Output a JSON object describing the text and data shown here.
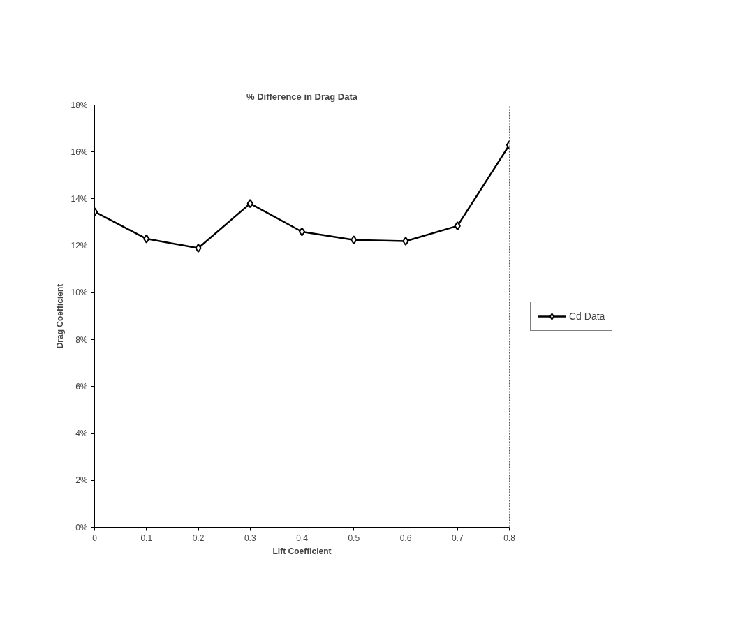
{
  "chart_data": {
    "type": "line",
    "title": "% Difference in Drag Data",
    "xlabel": "Lift Coefficient",
    "ylabel": "Drag Coefficient",
    "x": [
      0,
      0.1,
      0.2,
      0.3,
      0.4,
      0.5,
      0.6,
      0.7,
      0.8
    ],
    "series": [
      {
        "name": "Cd Data",
        "color": "#000000",
        "values": [
          13.45,
          12.3,
          11.9,
          13.8,
          12.6,
          12.25,
          12.2,
          12.85,
          16.3
        ]
      }
    ],
    "xlim": [
      0,
      0.8
    ],
    "xticks": [
      {
        "value": 0,
        "label": "0"
      },
      0.1,
      0.2,
      0.3,
      0.4,
      0.5,
      0.6,
      0.7,
      0.8
    ],
    "ylim": [
      0,
      18
    ],
    "yticks": [
      {
        "value": 0,
        "label": "0%"
      },
      {
        "value": 2,
        "label": "2%"
      },
      {
        "value": 4,
        "label": "4%"
      },
      {
        "value": 6,
        "label": "6%"
      },
      {
        "value": 8,
        "label": "8%"
      },
      {
        "value": 10,
        "label": "10%"
      },
      {
        "value": 12,
        "label": "12%"
      },
      {
        "value": 14,
        "label": "14%"
      },
      {
        "value": 16,
        "label": "16%"
      },
      {
        "value": 18,
        "label": "18%"
      }
    ],
    "grid": false,
    "legend": "right",
    "marker": "diamond",
    "line_style": "solid"
  }
}
